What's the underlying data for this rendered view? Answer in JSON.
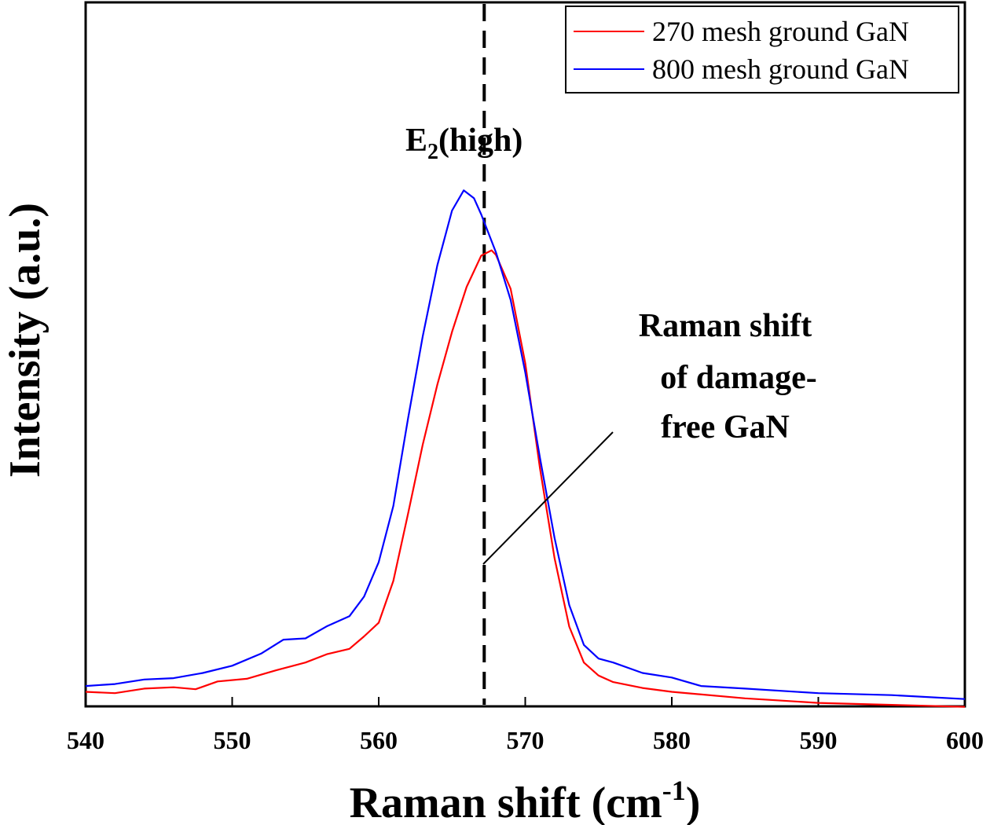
{
  "chart_data": {
    "type": "line",
    "title": "",
    "xlabel": "Raman shift (cm",
    "xlabel_sup": "-1",
    "xlabel_end": ")",
    "ylabel": "Intensity (a.u.)",
    "xlim": [
      540,
      600
    ],
    "x_ticks": [
      "540",
      "550",
      "560",
      "570",
      "580",
      "590",
      "600"
    ],
    "y_ticks": [],
    "ylim": [
      0,
      1
    ],
    "grid": false,
    "legend_position": "top-right",
    "series": [
      {
        "name": "270 mesh ground GaN",
        "color": "#ff0000",
        "points": [
          [
            540,
            0.062
          ],
          [
            542,
            0.06
          ],
          [
            544,
            0.067
          ],
          [
            546,
            0.069
          ],
          [
            547.5,
            0.066
          ],
          [
            549,
            0.078
          ],
          [
            551,
            0.082
          ],
          [
            553,
            0.095
          ],
          [
            555,
            0.107
          ],
          [
            556.5,
            0.12
          ],
          [
            558,
            0.128
          ],
          [
            559,
            0.147
          ],
          [
            560,
            0.168
          ],
          [
            561,
            0.232
          ],
          [
            562,
            0.335
          ],
          [
            563,
            0.441
          ],
          [
            564,
            0.533
          ],
          [
            565,
            0.614
          ],
          [
            566,
            0.683
          ],
          [
            567,
            0.731
          ],
          [
            567.7,
            0.739
          ],
          [
            568,
            0.732
          ],
          [
            569,
            0.68
          ],
          [
            570,
            0.566
          ],
          [
            571,
            0.405
          ],
          [
            572,
            0.267
          ],
          [
            573,
            0.162
          ],
          [
            574,
            0.107
          ],
          [
            575,
            0.087
          ],
          [
            576,
            0.077
          ],
          [
            578,
            0.068
          ],
          [
            580,
            0.062
          ],
          [
            585,
            0.052
          ],
          [
            590,
            0.045
          ],
          [
            595,
            0.042
          ],
          [
            600,
            0.039
          ]
        ]
      },
      {
        "name": "800 mesh ground GaN",
        "color": "#0000ff",
        "points": [
          [
            540,
            0.071
          ],
          [
            542,
            0.074
          ],
          [
            544,
            0.081
          ],
          [
            546,
            0.083
          ],
          [
            548,
            0.091
          ],
          [
            550,
            0.102
          ],
          [
            552,
            0.121
          ],
          [
            553.5,
            0.142
          ],
          [
            555,
            0.144
          ],
          [
            556.5,
            0.163
          ],
          [
            558,
            0.178
          ],
          [
            559,
            0.208
          ],
          [
            560,
            0.261
          ],
          [
            561,
            0.347
          ],
          [
            562,
            0.481
          ],
          [
            563,
            0.607
          ],
          [
            564,
            0.716
          ],
          [
            565,
            0.8
          ],
          [
            565.8,
            0.831
          ],
          [
            566.5,
            0.819
          ],
          [
            567,
            0.794
          ],
          [
            568,
            0.736
          ],
          [
            569,
            0.663
          ],
          [
            570,
            0.552
          ],
          [
            571,
            0.421
          ],
          [
            572,
            0.298
          ],
          [
            573,
            0.195
          ],
          [
            574,
            0.134
          ],
          [
            575,
            0.113
          ],
          [
            576,
            0.107
          ],
          [
            578,
            0.091
          ],
          [
            580,
            0.084
          ],
          [
            582,
            0.071
          ],
          [
            585,
            0.067
          ],
          [
            590,
            0.06
          ],
          [
            595,
            0.057
          ],
          [
            600,
            0.051
          ]
        ]
      }
    ],
    "reference_line": {
      "x": 567.2,
      "style": "dashed",
      "color": "#000000"
    },
    "annotations": {
      "peak_label_main": "E",
      "peak_label_sub": "2",
      "peak_label_rest": "(high)",
      "damage_free": [
        "Raman shift",
        "of damage-",
        "free GaN"
      ]
    }
  }
}
